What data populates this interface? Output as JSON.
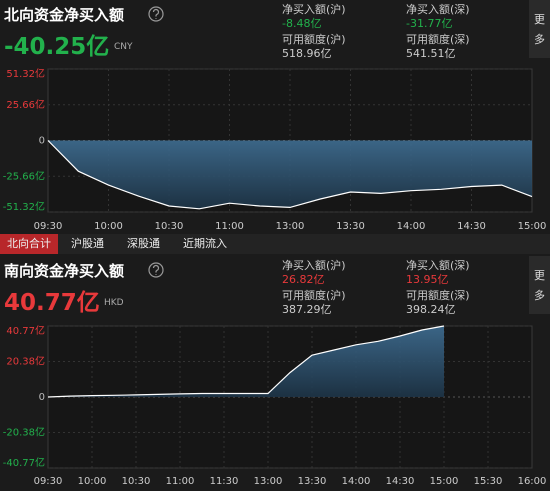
{
  "colors": {
    "up": "#e8393b",
    "down": "#22b14c"
  },
  "panels": [
    {
      "title": "北向资金净买入额",
      "total": "-40.25亿",
      "currency": "CNY",
      "more": "更多",
      "stats": [
        {
          "label": "净买入额(沪)",
          "value": "-8.48亿"
        },
        {
          "label": "净买入额(深)",
          "value": "-31.77亿"
        },
        {
          "label": "可用额度(沪)",
          "value": "518.96亿"
        },
        {
          "label": "可用额度(深)",
          "value": "541.51亿"
        }
      ]
    },
    {
      "title": "南向资金净买入额",
      "total": "40.77亿",
      "currency": "HKD",
      "more": "更多",
      "stats": [
        {
          "label": "净买入额(沪)",
          "value": "26.82亿"
        },
        {
          "label": "净买入额(深)",
          "value": "13.95亿"
        },
        {
          "label": "可用额度(沪)",
          "value": "387.29亿"
        },
        {
          "label": "可用额度(深)",
          "value": "398.24亿"
        }
      ]
    }
  ],
  "tabs": [
    "北向合计",
    "沪股通",
    "深股通",
    "近期流入"
  ],
  "active_tab": 0,
  "chart_data": [
    {
      "type": "area",
      "color": "#ffffff",
      "x": [
        "09:30",
        "09:45",
        "10:00",
        "10:15",
        "10:30",
        "10:45",
        "11:00",
        "11:15",
        "11:30",
        "13:15",
        "13:30",
        "13:45",
        "14:00",
        "14:15",
        "14:30",
        "14:45",
        "15:00"
      ],
      "values": [
        0,
        -22,
        -32,
        -40,
        -47,
        -49,
        -45,
        -47,
        -48,
        -42,
        -37,
        -38,
        -36,
        -35,
        -33,
        -32,
        -40.25
      ],
      "ylim": [
        -51.32,
        51.32
      ],
      "yticks": [
        {
          "value": 51.32,
          "label": "51.32亿"
        },
        {
          "value": 25.66,
          "label": "25.66亿"
        },
        0,
        {
          "value": -25.66,
          "label": "-25.66亿"
        },
        {
          "value": -51.32,
          "label": "-51.32亿"
        }
      ],
      "xticks": [
        "09:30",
        "10:00",
        "10:30",
        "11:00",
        "13:00",
        "13:30",
        "14:00",
        "14:30",
        "15:00"
      ],
      "grid": true
    },
    {
      "type": "area",
      "color": "#ffffff",
      "x": [
        "09:30",
        "09:45",
        "10:00",
        "10:15",
        "10:30",
        "10:45",
        "11:00",
        "11:15",
        "11:30",
        "11:45",
        "13:00",
        "13:15",
        "13:30",
        "13:45",
        "14:00",
        "14:15",
        "14:30",
        "14:45",
        "15:00"
      ],
      "values": [
        0,
        0.5,
        0.8,
        1,
        1.2,
        1.5,
        1.8,
        2,
        2,
        2,
        2,
        14,
        24,
        27,
        30,
        32,
        35,
        38.5,
        40.77
      ],
      "ylim": [
        -40.77,
        40.77
      ],
      "yticks": [
        {
          "value": 40.77,
          "label": "40.77亿"
        },
        {
          "value": 20.38,
          "label": "20.38亿"
        },
        0,
        {
          "value": -20.38,
          "label": "-20.38亿"
        },
        {
          "value": -40.77,
          "label": "-40.77亿"
        }
      ],
      "xticks": [
        "09:30",
        "10:00",
        "10:30",
        "11:00",
        "11:30",
        "13:00",
        "13:30",
        "14:00",
        "14:30",
        "15:00",
        "15:30",
        "16:00"
      ],
      "grid": true
    }
  ]
}
